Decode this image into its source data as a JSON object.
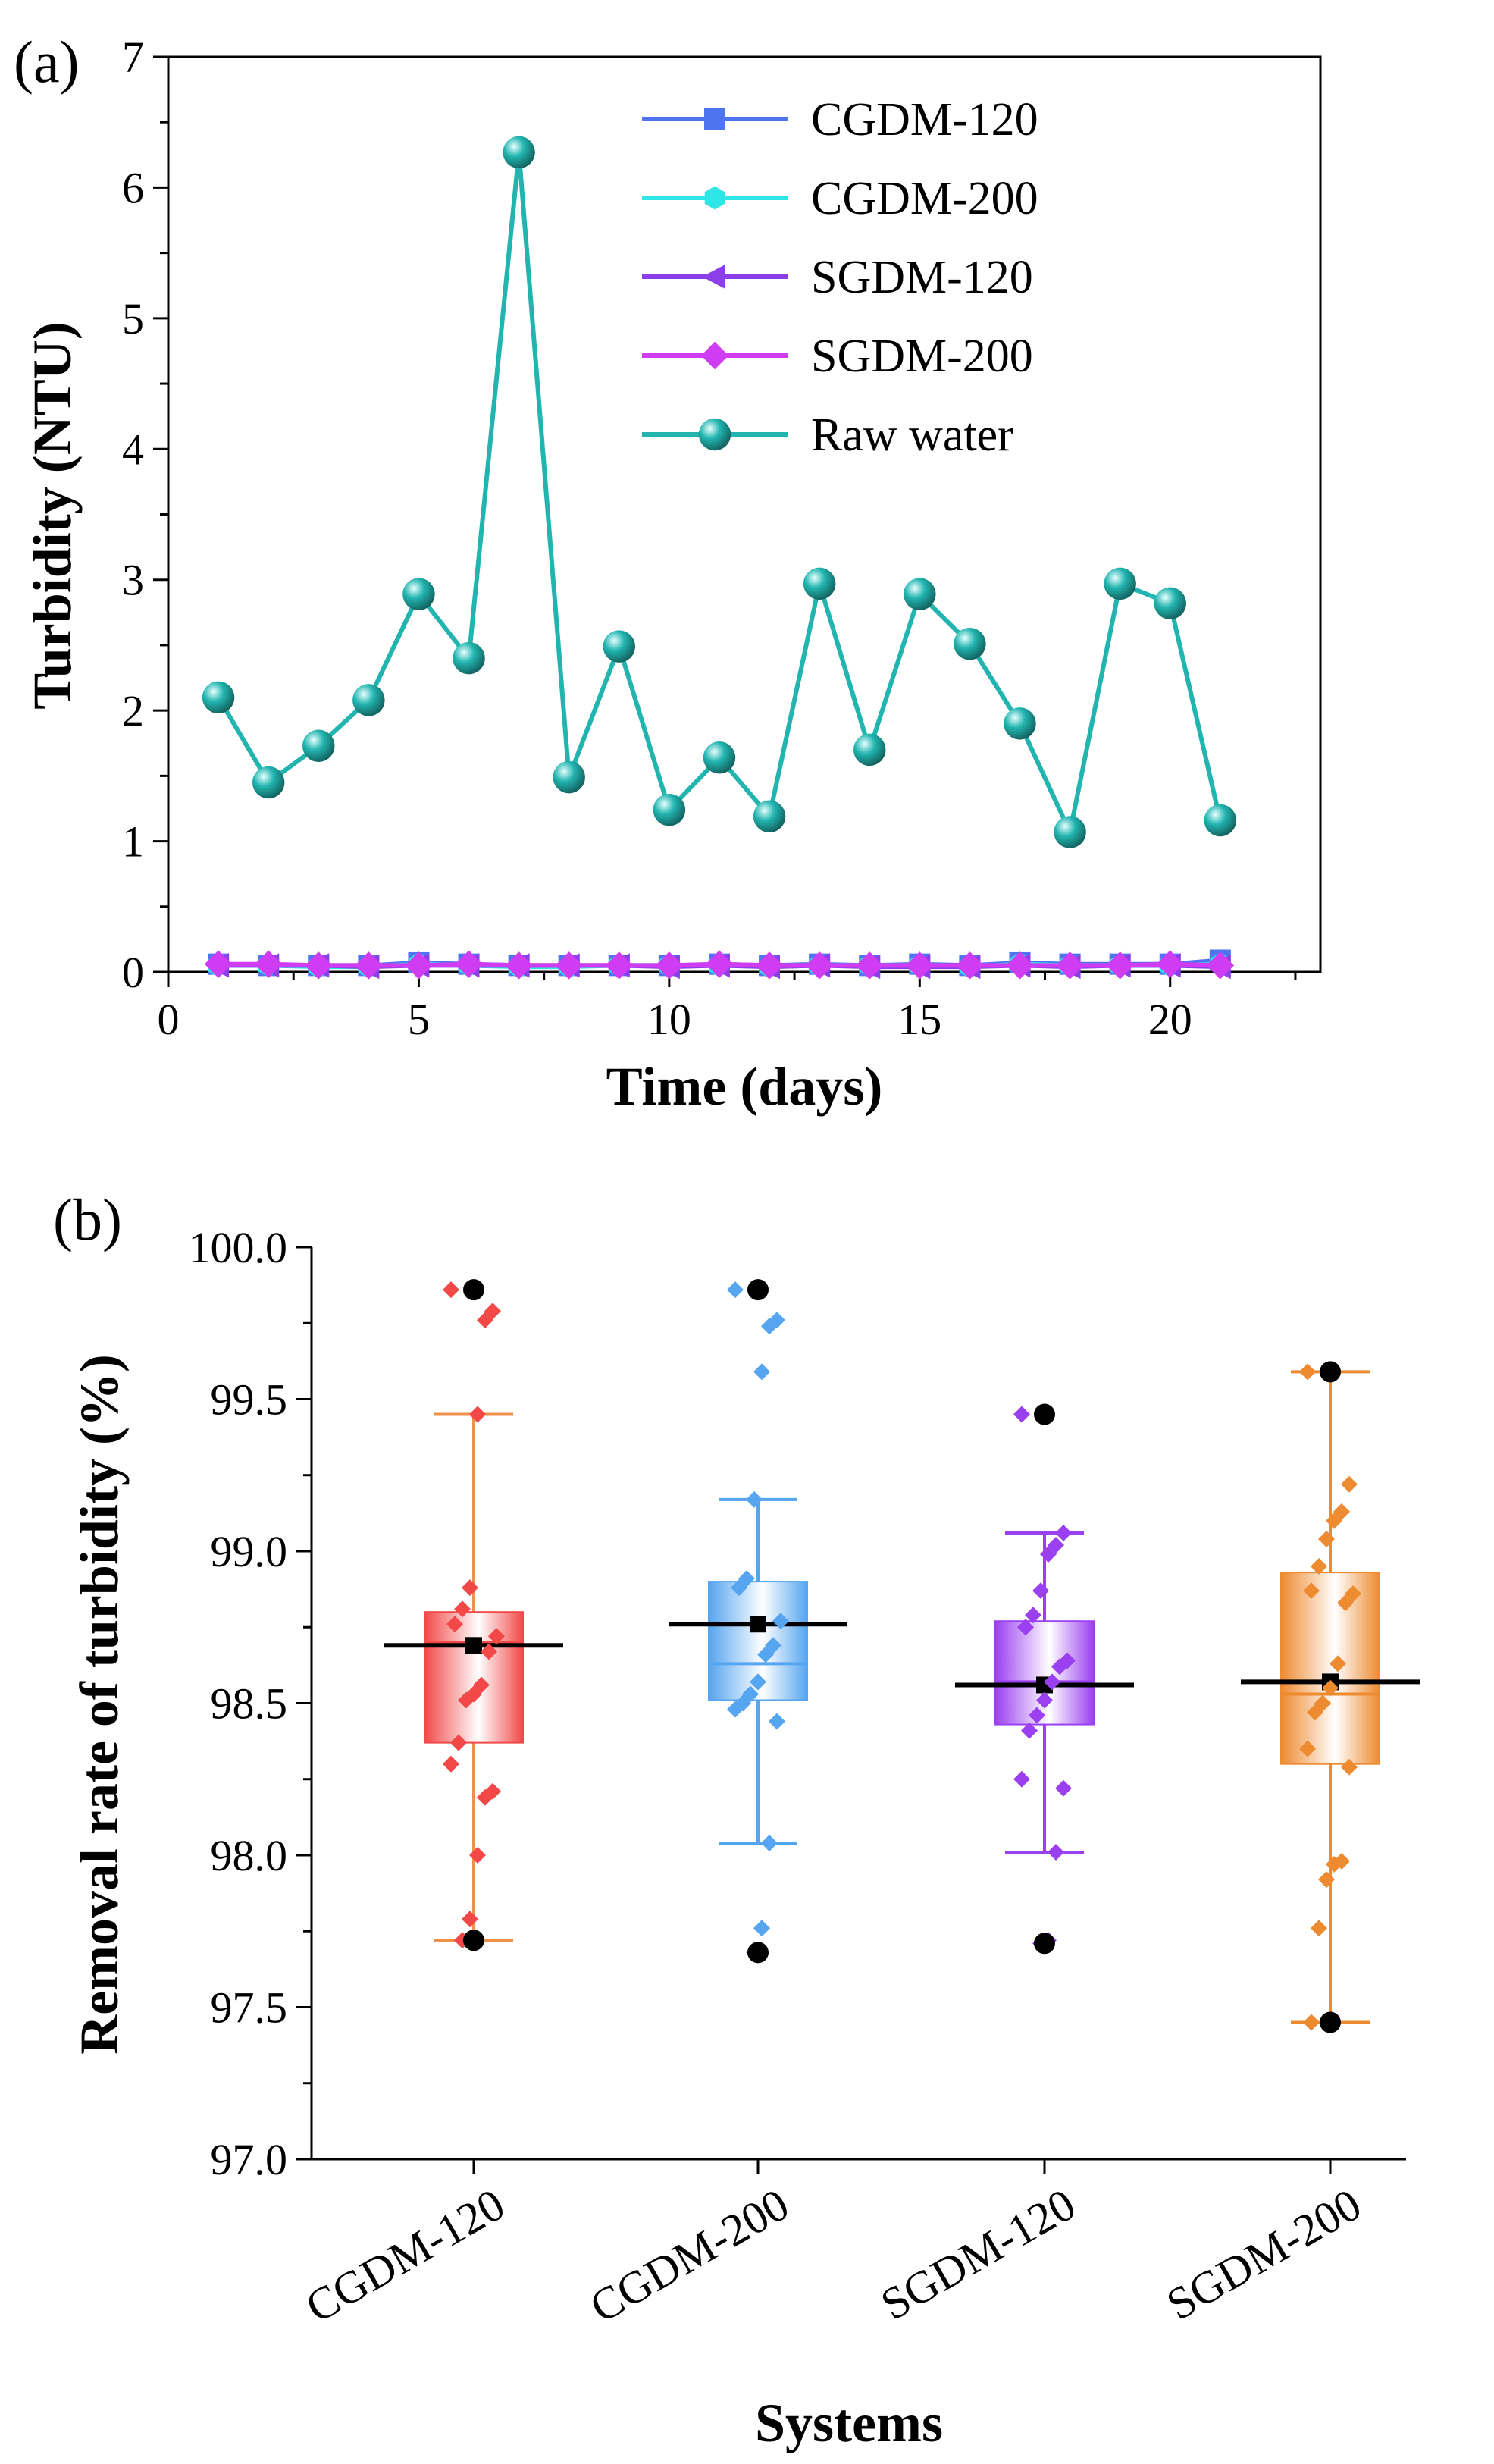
{
  "colors": {
    "cgdm120": "#4f74ef",
    "cgdm200": "#2ee6e6",
    "sgdm120": "#8c3ee8",
    "sgdm200": "#cf3cf2",
    "raw": "#22b5b0",
    "box_red": "#f24848",
    "box_blue": "#56a5f0",
    "box_purple": "#9b40f0",
    "box_orange": "#ee8a30",
    "whisker_red": "#f0914a"
  },
  "chart_data": [
    {
      "type": "line",
      "panel_label": "(a)",
      "xlabel": "Time (days)",
      "ylabel": "Turbidity (NTU)",
      "xlim": [
        0,
        23
      ],
      "ylim": [
        0,
        7
      ],
      "xticks": [
        "0",
        "5",
        "10",
        "15",
        "20"
      ],
      "xtick_values": [
        0,
        5,
        10,
        15,
        20
      ],
      "yticks": [
        "0",
        "1",
        "2",
        "3",
        "4",
        "5",
        "6",
        "7"
      ],
      "ytick_values": [
        0,
        1,
        2,
        3,
        4,
        5,
        6,
        7
      ],
      "x": [
        1,
        2,
        3,
        4,
        5,
        6,
        7,
        8,
        9,
        10,
        11,
        12,
        13,
        14,
        15,
        16,
        17,
        18,
        19,
        20,
        21
      ],
      "series": [
        {
          "name": "CGDM-120",
          "marker": "square",
          "color_key": "cgdm120",
          "values": [
            0.06,
            0.05,
            0.05,
            0.05,
            0.07,
            0.06,
            0.05,
            0.05,
            0.05,
            0.05,
            0.06,
            0.05,
            0.06,
            0.05,
            0.06,
            0.05,
            0.07,
            0.06,
            0.06,
            0.06,
            0.09
          ]
        },
        {
          "name": "CGDM-200",
          "marker": "hexagon",
          "color_key": "cgdm200",
          "values": [
            0.05,
            0.05,
            0.04,
            0.04,
            0.06,
            0.05,
            0.04,
            0.04,
            0.05,
            0.05,
            0.05,
            0.04,
            0.05,
            0.05,
            0.05,
            0.04,
            0.06,
            0.05,
            0.05,
            0.05,
            0.06
          ]
        },
        {
          "name": "SGDM-120",
          "marker": "triangle-left",
          "color_key": "sgdm120",
          "values": [
            0.05,
            0.05,
            0.05,
            0.04,
            0.05,
            0.05,
            0.05,
            0.05,
            0.05,
            0.04,
            0.05,
            0.04,
            0.05,
            0.04,
            0.04,
            0.04,
            0.05,
            0.04,
            0.05,
            0.05,
            0.04
          ]
        },
        {
          "name": "SGDM-200",
          "marker": "diamond",
          "color_key": "sgdm200",
          "values": [
            0.06,
            0.06,
            0.05,
            0.05,
            0.05,
            0.06,
            0.05,
            0.05,
            0.05,
            0.05,
            0.06,
            0.05,
            0.05,
            0.05,
            0.05,
            0.05,
            0.05,
            0.05,
            0.05,
            0.06,
            0.05
          ]
        },
        {
          "name": "Raw water",
          "marker": "sphere",
          "color_key": "raw",
          "values": [
            2.1,
            1.45,
            1.73,
            2.08,
            2.89,
            2.4,
            6.27,
            1.49,
            2.49,
            1.24,
            1.64,
            1.19,
            2.97,
            1.7,
            2.89,
            2.51,
            1.9,
            1.07,
            2.97,
            2.82,
            1.16
          ]
        }
      ],
      "legend": "top-right"
    },
    {
      "type": "box",
      "panel_label": "(b)",
      "xlabel": "Systems",
      "ylabel": "Removal rate of turbidity (%)",
      "ylim": [
        97.0,
        100.0
      ],
      "yticks": [
        "97.0",
        "97.5",
        "98.0",
        "98.5",
        "99.0",
        "99.5",
        "100.0"
      ],
      "ytick_values": [
        97.0,
        97.5,
        98.0,
        98.5,
        99.0,
        99.5,
        100.0
      ],
      "categories": [
        "CGDM-120",
        "CGDM-200",
        "SGDM-120",
        "SGDM-200"
      ],
      "boxes": [
        {
          "name": "CGDM-120",
          "color_key": "box_red",
          "whisker_color_key": "whisker_red",
          "q1": 98.37,
          "q3": 98.8,
          "median": 98.7,
          "mean": 98.69,
          "whisker_low": 97.72,
          "whisker_high": 99.45,
          "outliers": [
            99.86,
            97.72
          ],
          "points": [
            99.86,
            99.79,
            99.76,
            99.45,
            98.88,
            98.81,
            98.76,
            98.72,
            98.67,
            98.56,
            98.53,
            98.51,
            98.37,
            98.3,
            98.21,
            98.19,
            98.0,
            97.79,
            97.72
          ]
        },
        {
          "name": "CGDM-200",
          "color_key": "box_blue",
          "whisker_color_key": "box_blue",
          "q1": 98.51,
          "q3": 98.9,
          "median": 98.63,
          "mean": 98.76,
          "whisker_low": 98.04,
          "whisker_high": 99.17,
          "outliers": [
            99.86,
            97.68
          ],
          "points": [
            99.86,
            99.76,
            99.74,
            99.59,
            99.17,
            98.91,
            98.88,
            98.77,
            98.69,
            98.66,
            98.57,
            98.53,
            98.5,
            98.48,
            98.44,
            98.04,
            97.76,
            97.68
          ]
        },
        {
          "name": "SGDM-120",
          "color_key": "box_purple",
          "whisker_color_key": "box_purple",
          "q1": 98.43,
          "q3": 98.77,
          "median": 98.57,
          "mean": 98.56,
          "whisker_low": 98.01,
          "whisker_high": 99.06,
          "outliers": [
            99.45,
            97.71
          ],
          "points": [
            99.45,
            99.06,
            99.02,
            98.99,
            98.87,
            98.79,
            98.75,
            98.64,
            98.62,
            98.57,
            98.51,
            98.46,
            98.41,
            98.25,
            98.22,
            98.01,
            97.72,
            97.71
          ]
        },
        {
          "name": "SGDM-200",
          "color_key": "box_orange",
          "whisker_color_key": "box_orange",
          "q1": 98.3,
          "q3": 98.93,
          "median": 98.53,
          "mean": 98.57,
          "whisker_low": 97.45,
          "whisker_high": 99.59,
          "outliers": [
            99.59,
            97.45
          ],
          "points": [
            99.59,
            99.22,
            99.13,
            99.1,
            99.04,
            98.95,
            98.87,
            98.86,
            98.83,
            98.63,
            98.55,
            98.5,
            98.47,
            98.35,
            98.29,
            97.98,
            97.97,
            97.92,
            97.76,
            97.45
          ]
        }
      ]
    }
  ]
}
